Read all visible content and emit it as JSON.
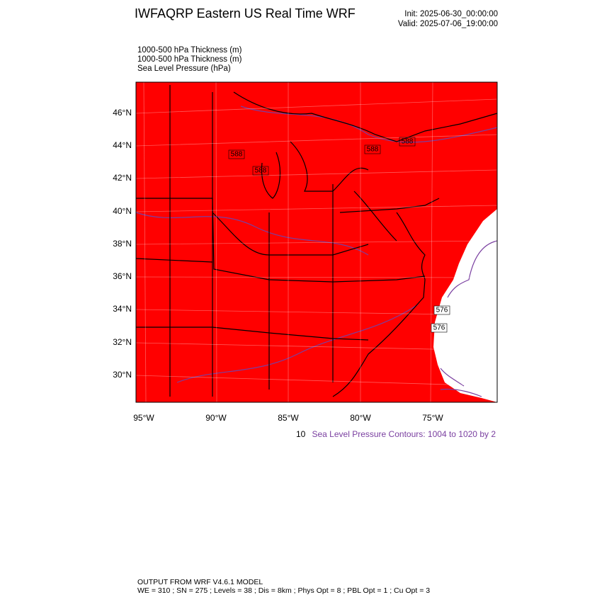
{
  "header": {
    "title": "IWFAQRP Eastern US Real Time WRF",
    "init": "Init: 2025-06-30_00:00:00",
    "valid": "Valid: 2025-07-06_19:00:00"
  },
  "fields": [
    "1000-500 hPa Thickness   (m)",
    "1000-500 hPa Thickness   (m)",
    "Sea Level Pressure   (hPa)"
  ],
  "map": {
    "lat_labels": [
      "46°N",
      "44°N",
      "42°N",
      "40°N",
      "38°N",
      "36°N",
      "34°N",
      "32°N",
      "30°N"
    ],
    "lon_labels": [
      "95°W",
      "90°W",
      "85°W",
      "80°W",
      "75°W"
    ],
    "contour_labels": [
      "588",
      "588",
      "588",
      "588",
      "576",
      "576"
    ]
  },
  "contour_info": {
    "clipped": "10",
    "slp": "Sea Level Pressure Contours: 1004 to 1020 by 2"
  },
  "footer": {
    "model": "OUTPUT FROM WRF V4.6.1 MODEL",
    "settings": "WE = 310 ; SN = 275 ; Levels = 38 ; Dis = 8km ; Phys Opt = 8 ; PBL Opt = 1 ; Cu Opt = 3"
  }
}
